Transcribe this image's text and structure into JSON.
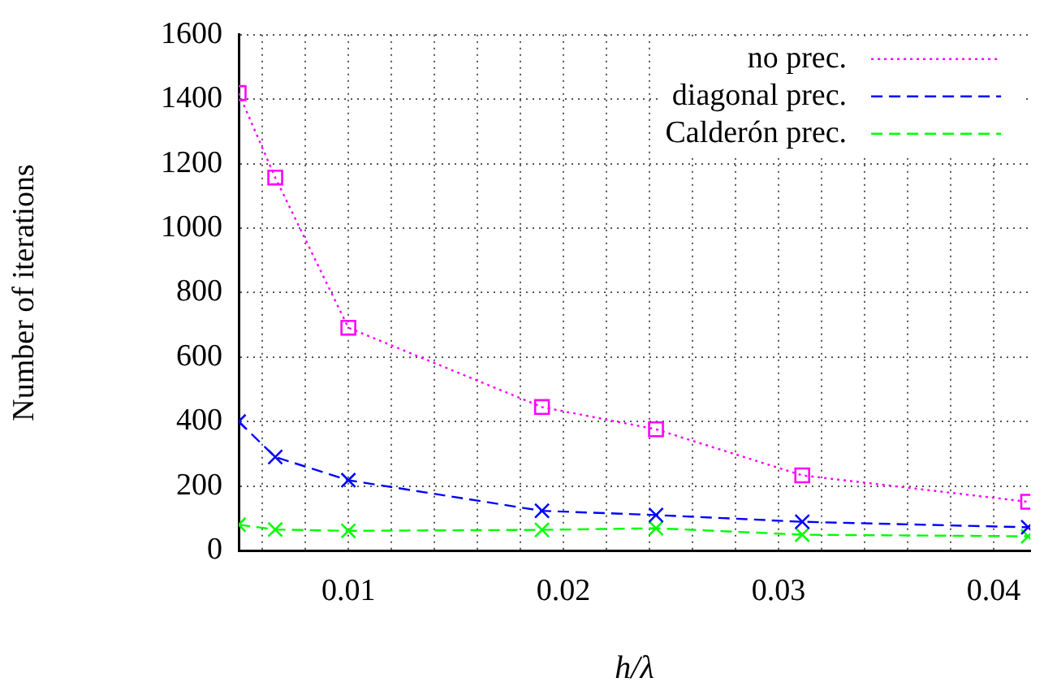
{
  "chart_data": {
    "type": "line",
    "xlabel": "h/λ",
    "ylabel": "Number of iterations",
    "xlim": [
      0.0049,
      0.0417
    ],
    "ylim": [
      0,
      1600
    ],
    "xticks": [
      {
        "value": 0.006,
        "label": null
      },
      {
        "value": 0.008,
        "label": null
      },
      0.01,
      {
        "value": 0.012,
        "label": null
      },
      {
        "value": 0.014,
        "label": null
      },
      {
        "value": 0.016,
        "label": null
      },
      {
        "value": 0.018,
        "label": null
      },
      0.02,
      {
        "value": 0.022,
        "label": null
      },
      {
        "value": 0.024,
        "label": null
      },
      {
        "value": 0.026,
        "label": null
      },
      {
        "value": 0.028,
        "label": null
      },
      0.03,
      {
        "value": 0.032,
        "label": null
      },
      {
        "value": 0.034,
        "label": null
      },
      {
        "value": 0.036,
        "label": null
      },
      {
        "value": 0.038,
        "label": null
      },
      0.04
    ],
    "yticks": [
      0,
      200,
      400,
      600,
      800,
      1000,
      1200,
      1400,
      1600
    ],
    "grid": true,
    "legend": "top right",
    "x": [
      0.0049,
      0.0066,
      0.01,
      0.019,
      0.0243,
      0.0311,
      0.0416
    ],
    "series": [
      {
        "name": "no prec.",
        "color": "#ff00ff",
        "marker": "square",
        "line_style": "dotted",
        "values": [
          1419,
          1157,
          691,
          445,
          376,
          233,
          151
        ]
      },
      {
        "name": "diagonal prec.",
        "color": "#0000ff",
        "marker": "cross",
        "line_style": "dashed",
        "values": [
          400,
          290,
          218,
          123,
          110,
          89,
          72
        ]
      },
      {
        "name": "Calderón prec.",
        "color": "#00ff00",
        "marker": "cross",
        "line_style": "dashed",
        "values": [
          80,
          65,
          61,
          64,
          69,
          49,
          44
        ]
      }
    ]
  }
}
